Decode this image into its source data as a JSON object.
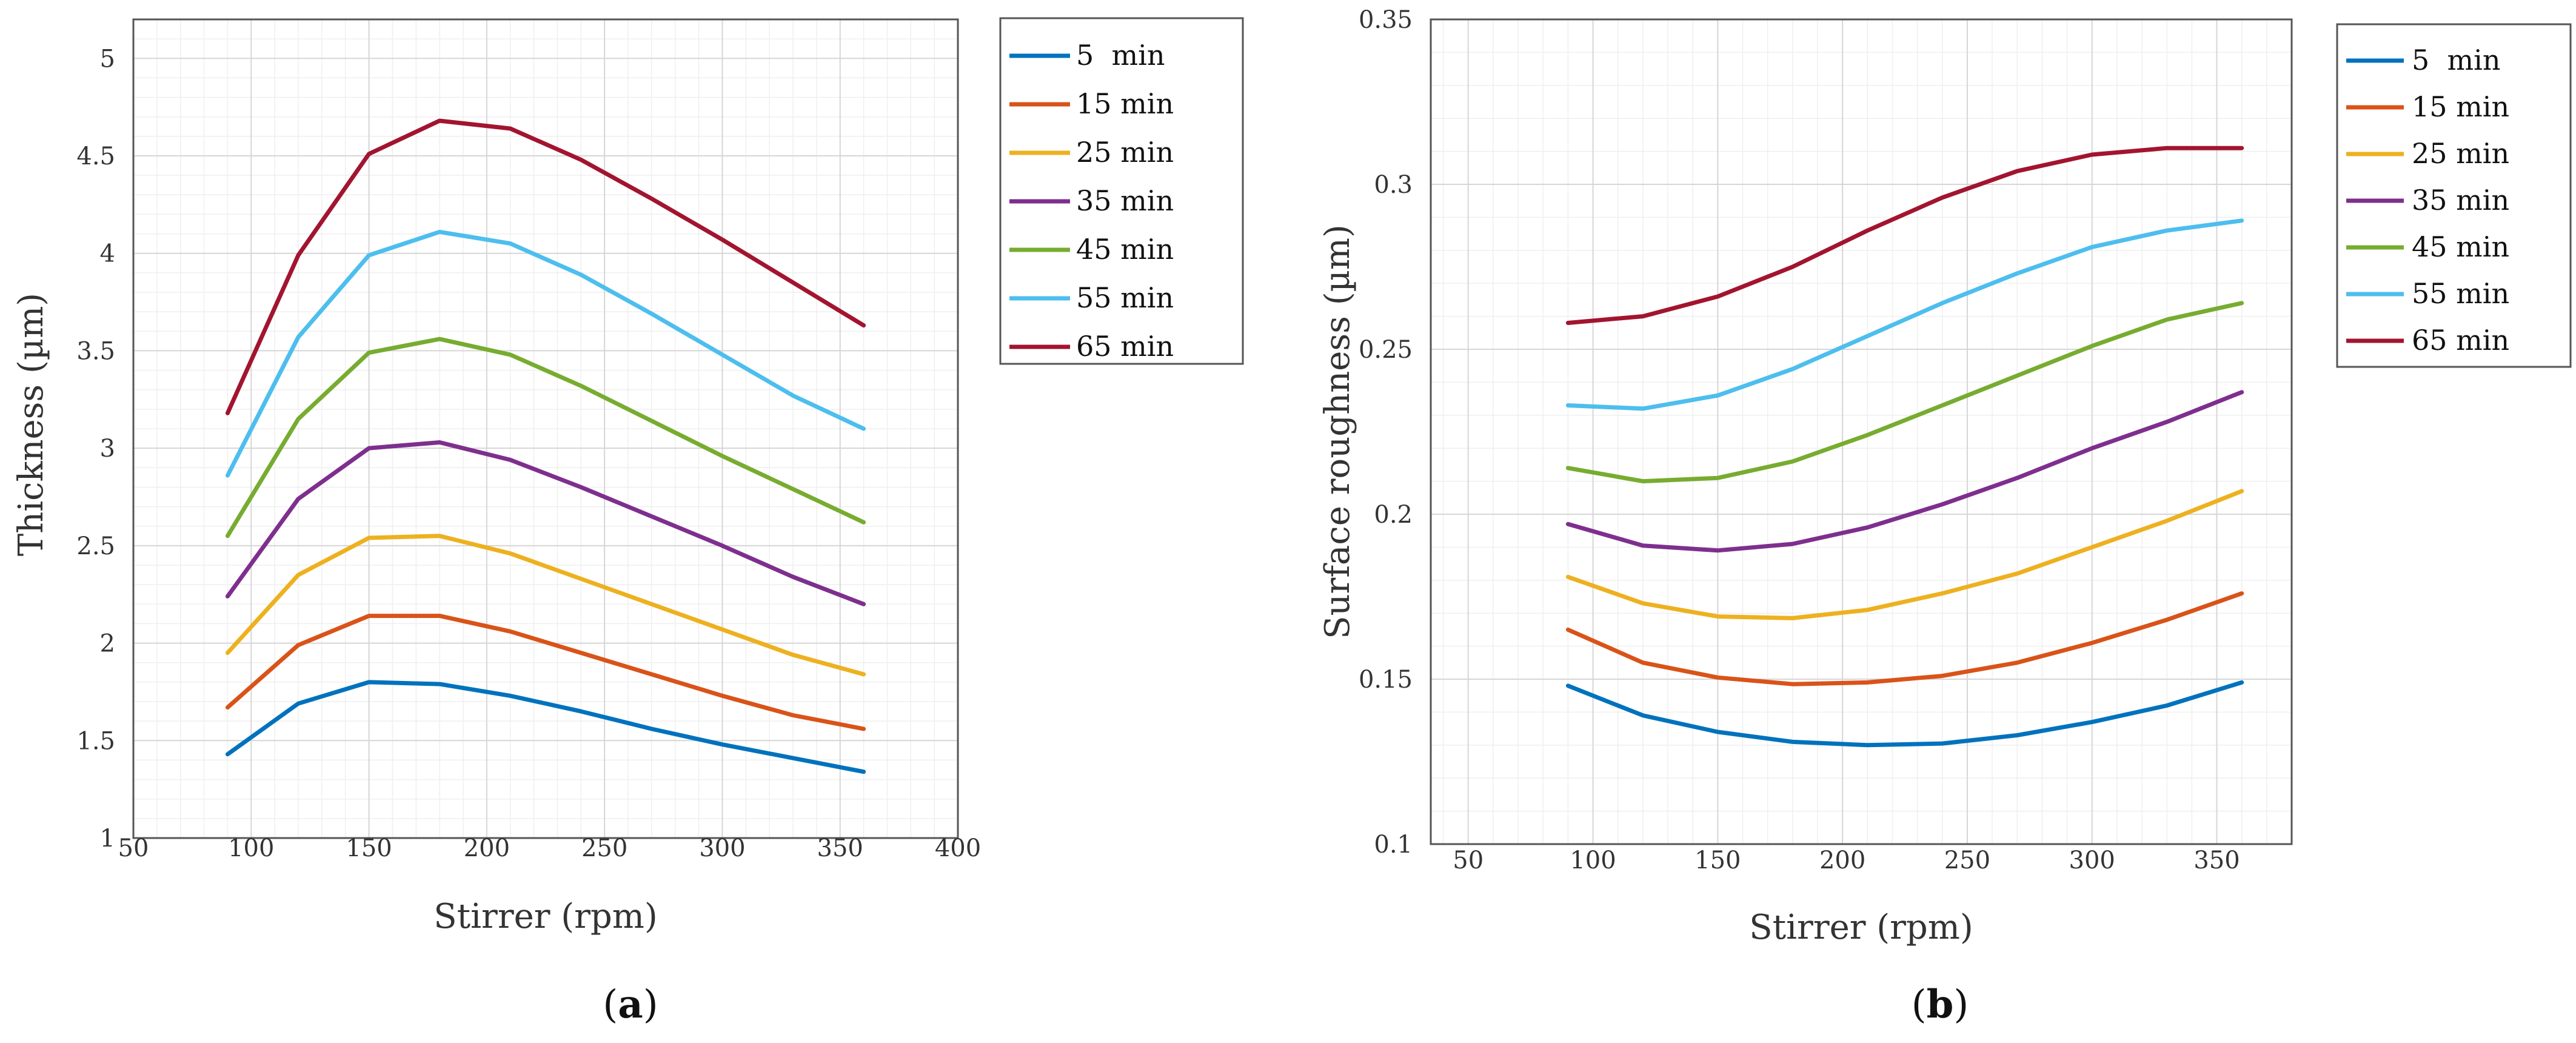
{
  "panels": [
    {
      "caption_letter": "a"
    },
    {
      "caption_letter": "b"
    }
  ],
  "colors": [
    "#0072BD",
    "#D95319",
    "#EDB120",
    "#7E2F8E",
    "#77AC30",
    "#4DBEEE",
    "#A2142F"
  ],
  "chart_data": [
    {
      "type": "line",
      "title": "",
      "xlabel": "Stirrer (rpm)",
      "ylabel": "Thickness (µm)",
      "xlim": [
        50,
        400
      ],
      "ylim": [
        1,
        5.2
      ],
      "xticks": [
        50,
        100,
        150,
        200,
        250,
        300,
        350,
        400
      ],
      "yticks": [
        1,
        1.5,
        2,
        2.5,
        3,
        3.5,
        4,
        4.5,
        5
      ],
      "xtick_labels": [
        "50",
        "100",
        "150",
        "200",
        "250",
        "300",
        "350",
        "400"
      ],
      "ytick_labels": [
        "1",
        "1.5",
        "2",
        "2.5",
        "3",
        "3.5",
        "4",
        "4.5",
        "5"
      ],
      "grid": true,
      "legend_position": "outside-right-top",
      "x": [
        90,
        120,
        150,
        180,
        210,
        240,
        270,
        300,
        330,
        360
      ],
      "series": [
        {
          "name": "5  min",
          "values": [
            1.43,
            1.69,
            1.8,
            1.79,
            1.73,
            1.65,
            1.56,
            1.48,
            1.41,
            1.34
          ]
        },
        {
          "name": "15 min",
          "values": [
            1.67,
            1.99,
            2.14,
            2.14,
            2.06,
            1.95,
            1.84,
            1.73,
            1.63,
            1.56
          ]
        },
        {
          "name": "25 min",
          "values": [
            1.95,
            2.35,
            2.54,
            2.55,
            2.46,
            2.33,
            2.2,
            2.07,
            1.94,
            1.84
          ]
        },
        {
          "name": "35 min",
          "values": [
            2.24,
            2.74,
            3.0,
            3.03,
            2.94,
            2.8,
            2.65,
            2.5,
            2.34,
            2.2
          ]
        },
        {
          "name": "45 min",
          "values": [
            2.55,
            3.15,
            3.49,
            3.56,
            3.48,
            3.32,
            3.14,
            2.96,
            2.79,
            2.62
          ]
        },
        {
          "name": "55 min",
          "values": [
            2.86,
            3.57,
            3.99,
            4.11,
            4.05,
            3.89,
            3.69,
            3.48,
            3.27,
            3.1
          ]
        },
        {
          "name": "65 min",
          "values": [
            3.18,
            3.99,
            4.51,
            4.68,
            4.64,
            4.48,
            4.28,
            4.07,
            3.85,
            3.63
          ]
        }
      ]
    },
    {
      "type": "line",
      "title": "",
      "xlabel": "Stirrer (rpm)",
      "ylabel": "Surface roughness (µm)",
      "xlim": [
        35,
        380
      ],
      "ylim": [
        0.1,
        0.35
      ],
      "xticks": [
        50,
        100,
        150,
        200,
        250,
        300,
        350
      ],
      "yticks": [
        0.1,
        0.15,
        0.2,
        0.25,
        0.3,
        0.35
      ],
      "xtick_labels": [
        "50",
        "100",
        "150",
        "200",
        "250",
        "300",
        "350"
      ],
      "ytick_labels": [
        "0.1",
        "0.15",
        "0.2",
        "0.25",
        "0.3",
        "0.35"
      ],
      "grid": true,
      "legend_position": "outside-right-top",
      "x": [
        90,
        120,
        150,
        180,
        210,
        240,
        270,
        300,
        330,
        360
      ],
      "series": [
        {
          "name": "5  min",
          "values": [
            0.148,
            0.139,
            0.134,
            0.131,
            0.13,
            0.1305,
            0.133,
            0.137,
            0.142,
            0.149
          ]
        },
        {
          "name": "15 min",
          "values": [
            0.165,
            0.155,
            0.1505,
            0.1485,
            0.149,
            0.151,
            0.155,
            0.161,
            0.168,
            0.176
          ]
        },
        {
          "name": "25 min",
          "values": [
            0.181,
            0.173,
            0.169,
            0.1685,
            0.171,
            0.176,
            0.182,
            0.19,
            0.198,
            0.207
          ]
        },
        {
          "name": "35 min",
          "values": [
            0.197,
            0.1905,
            0.189,
            0.191,
            0.196,
            0.203,
            0.211,
            0.22,
            0.228,
            0.237
          ]
        },
        {
          "name": "45 min",
          "values": [
            0.214,
            0.21,
            0.211,
            0.216,
            0.224,
            0.233,
            0.242,
            0.251,
            0.259,
            0.264
          ]
        },
        {
          "name": "55 min",
          "values": [
            0.233,
            0.232,
            0.236,
            0.244,
            0.254,
            0.264,
            0.273,
            0.281,
            0.286,
            0.289
          ]
        },
        {
          "name": "65 min",
          "values": [
            0.258,
            0.26,
            0.266,
            0.275,
            0.286,
            0.296,
            0.304,
            0.309,
            0.311,
            0.311
          ]
        }
      ]
    }
  ]
}
